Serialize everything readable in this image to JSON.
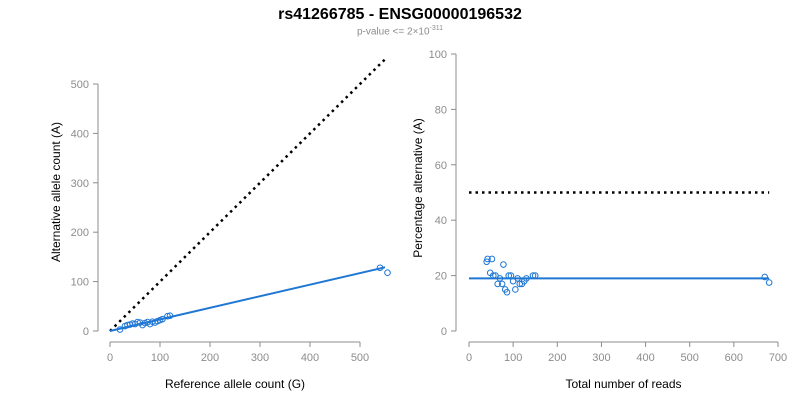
{
  "title": "rs41266785 - ENSG00000196532",
  "subtitle": {
    "prefix": "p-value <= 2",
    "times": "×",
    "base": "10",
    "exponent": "-311"
  },
  "colors": {
    "series": "#1f77d4",
    "reference": "#000000",
    "axis": "#8c8c8c"
  },
  "chart_data": [
    {
      "type": "scatter",
      "xlabel": "Reference allele count (G)",
      "ylabel": "Alternative allele count (A)",
      "xlim": [
        0,
        560
      ],
      "ylim": [
        0,
        500
      ],
      "xticks": [
        0,
        100,
        200,
        300,
        400,
        500
      ],
      "yticks": [
        0,
        100,
        200,
        300,
        400,
        500
      ],
      "grid": false,
      "points": [
        [
          20,
          3
        ],
        [
          30,
          10
        ],
        [
          35,
          12
        ],
        [
          40,
          13
        ],
        [
          45,
          15
        ],
        [
          50,
          14
        ],
        [
          55,
          18
        ],
        [
          60,
          17
        ],
        [
          65,
          12
        ],
        [
          70,
          16
        ],
        [
          75,
          18
        ],
        [
          80,
          14
        ],
        [
          85,
          19
        ],
        [
          90,
          17
        ],
        [
          95,
          20
        ],
        [
          100,
          22
        ],
        [
          105,
          24
        ],
        [
          115,
          30
        ],
        [
          120,
          31
        ],
        [
          540,
          128
        ],
        [
          555,
          118
        ]
      ],
      "fit_line": {
        "x": [
          0,
          550
        ],
        "y": [
          0,
          129
        ]
      },
      "reference_line": {
        "x": [
          0,
          550
        ],
        "y": [
          0,
          550
        ],
        "style": "dotted"
      }
    },
    {
      "type": "scatter",
      "xlabel": "Total number of reads",
      "ylabel": "Percentage alternative (A)",
      "xlim": [
        0,
        700
      ],
      "ylim": [
        0,
        100
      ],
      "xticks": [
        0,
        100,
        200,
        300,
        400,
        500,
        600,
        700
      ],
      "yticks": [
        0,
        20,
        40,
        60,
        80,
        100
      ],
      "grid": false,
      "points": [
        [
          40,
          25
        ],
        [
          42,
          26
        ],
        [
          48,
          21
        ],
        [
          52,
          26
        ],
        [
          55,
          20
        ],
        [
          60,
          20
        ],
        [
          65,
          17
        ],
        [
          70,
          19
        ],
        [
          75,
          17
        ],
        [
          78,
          24
        ],
        [
          82,
          15
        ],
        [
          86,
          14
        ],
        [
          90,
          20
        ],
        [
          95,
          20
        ],
        [
          100,
          18
        ],
        [
          105,
          15
        ],
        [
          110,
          19
        ],
        [
          115,
          17
        ],
        [
          120,
          17
        ],
        [
          125,
          18
        ],
        [
          130,
          19
        ],
        [
          145,
          20
        ],
        [
          150,
          20
        ],
        [
          670,
          19.5
        ],
        [
          680,
          17.5
        ]
      ],
      "fit_line": {
        "x": [
          0,
          680
        ],
        "y": [
          19,
          19
        ]
      },
      "reference_line": {
        "x": [
          0,
          680
        ],
        "y": [
          50,
          50
        ],
        "style": "dotted"
      }
    }
  ]
}
